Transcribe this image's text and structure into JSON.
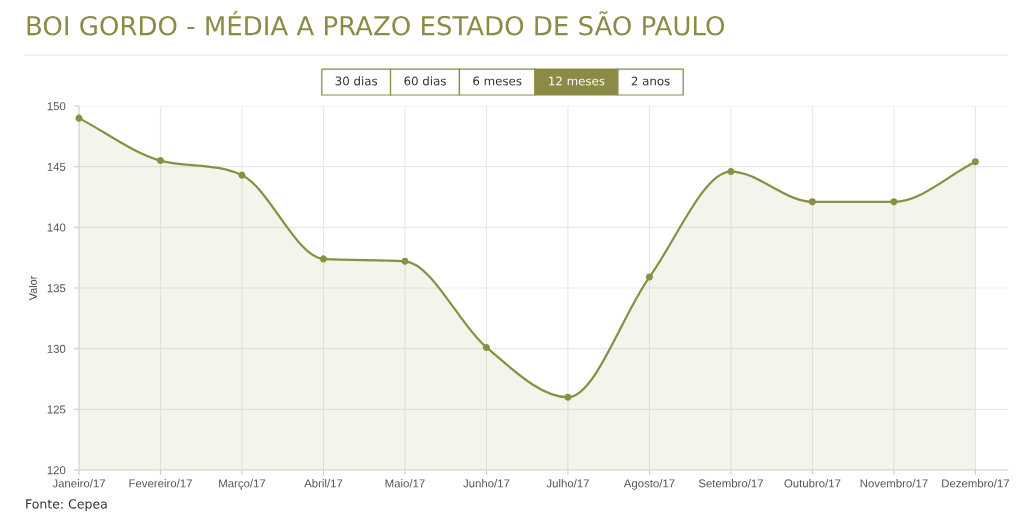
{
  "chart_data": {
    "type": "area",
    "title": "BOI GORDO - MÉDIA A PRAZO ESTADO DE SÃO PAULO",
    "ylabel": "Valor",
    "categories": [
      "Janeiro/17",
      "Fevereiro/17",
      "Março/17",
      "Abril/17",
      "Maio/17",
      "Junho/17",
      "Julho/17",
      "Agosto/17",
      "Setembro/17",
      "Outubro/17",
      "Novembro/17",
      "Dezembro/17"
    ],
    "series": [
      {
        "color": "#8b8f41",
        "values": [
          149.0,
          145.5,
          144.3,
          137.4,
          137.2,
          130.1,
          126.0,
          135.9,
          144.6,
          142.1,
          142.1,
          145.4
        ]
      }
    ],
    "ylim": [
      120,
      150
    ],
    "yticks": [
      120,
      125,
      130,
      135,
      140,
      145,
      150
    ],
    "grid": true,
    "marker": "circle",
    "line_style": "solid",
    "annotations": [
      "30 dias",
      "60 dias",
      "6 meses",
      "12 meses",
      "2 anos",
      "Fonte: Cepea"
    ]
  }
}
